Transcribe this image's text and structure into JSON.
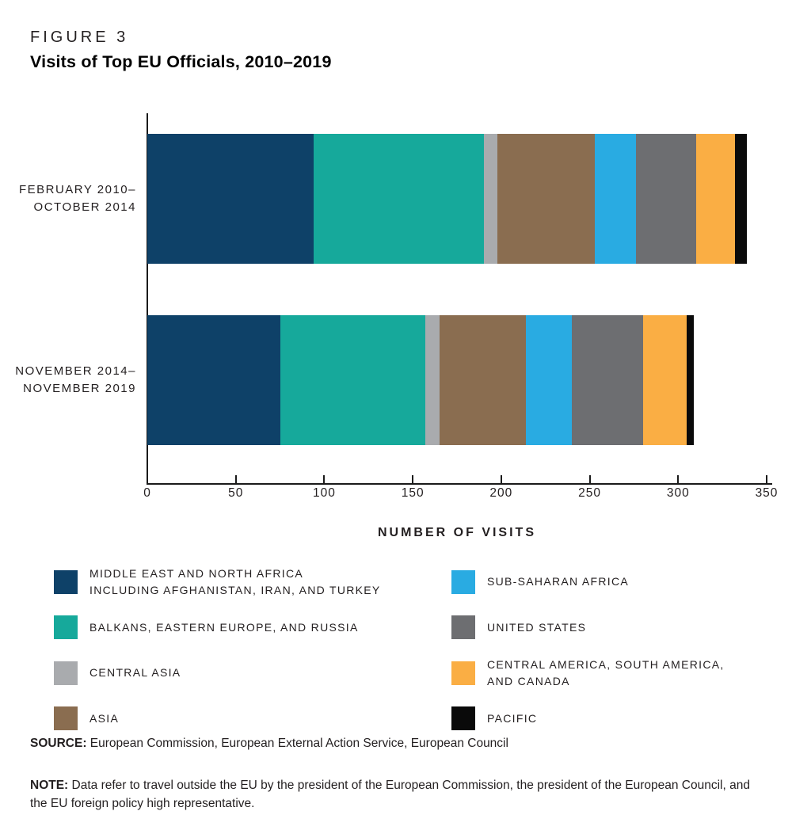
{
  "figure": {
    "label": "FIGURE 3",
    "title": "Visits of Top EU Officials, 2010–2019"
  },
  "chart_data": {
    "type": "bar",
    "orientation": "horizontal",
    "stacked": true,
    "title": "Visits of Top EU Officials, 2010–2019",
    "xlabel": "NUMBER OF VISITS",
    "xlim": [
      0,
      350
    ],
    "x_ticks": [
      0,
      50,
      100,
      150,
      200,
      250,
      300,
      350
    ],
    "grid": false,
    "legend_position": "bottom",
    "categories": [
      {
        "lines": [
          "FEBRUARY 2010–",
          "OCTOBER 2014"
        ],
        "total": 339
      },
      {
        "lines": [
          "NOVEMBER 2014–",
          "NOVEMBER 2019"
        ],
        "total": 309
      }
    ],
    "series": [
      {
        "name": "Middle East and North Africa including Afghanistan, Iran, and Turkey",
        "legend_lines": [
          "MIDDLE EAST AND NORTH AFRICA",
          "INCLUDING AFGHANISTAN, IRAN, AND TURKEY"
        ],
        "color": "#0e4168",
        "values": [
          94,
          75
        ]
      },
      {
        "name": "Balkans, Eastern Europe, and Russia",
        "legend_lines": [
          "BALKANS, EASTERN EUROPE, AND RUSSIA"
        ],
        "color": "#16a99b",
        "values": [
          96,
          82
        ]
      },
      {
        "name": "Central Asia",
        "legend_lines": [
          "CENTRAL ASIA"
        ],
        "color": "#a9abae",
        "values": [
          8,
          8
        ]
      },
      {
        "name": "Asia",
        "legend_lines": [
          "ASIA"
        ],
        "color": "#8a6d50",
        "values": [
          55,
          49
        ]
      },
      {
        "name": "Sub-Saharan Africa",
        "legend_lines": [
          "SUB-SAHARAN AFRICA"
        ],
        "color": "#29abe2",
        "values": [
          23,
          26
        ]
      },
      {
        "name": "United States",
        "legend_lines": [
          "UNITED STATES"
        ],
        "color": "#6d6e71",
        "values": [
          34,
          40
        ]
      },
      {
        "name": "Central America, South America, and Canada",
        "legend_lines": [
          "CENTRAL AMERICA, SOUTH AMERICA,",
          "AND CANADA"
        ],
        "color": "#faae44",
        "values": [
          22,
          25
        ]
      },
      {
        "name": "Pacific",
        "legend_lines": [
          "PACIFIC"
        ],
        "color": "#0a0a0a",
        "values": [
          7,
          4
        ]
      }
    ]
  },
  "source": {
    "label": "SOURCE:",
    "text": " European Commission, European External Action Service, European Council"
  },
  "note": {
    "label": "NOTE:",
    "text": " Data refer to travel outside the EU by the president of the European Commission, the president of the European Council, and the EU foreign policy high representative."
  }
}
